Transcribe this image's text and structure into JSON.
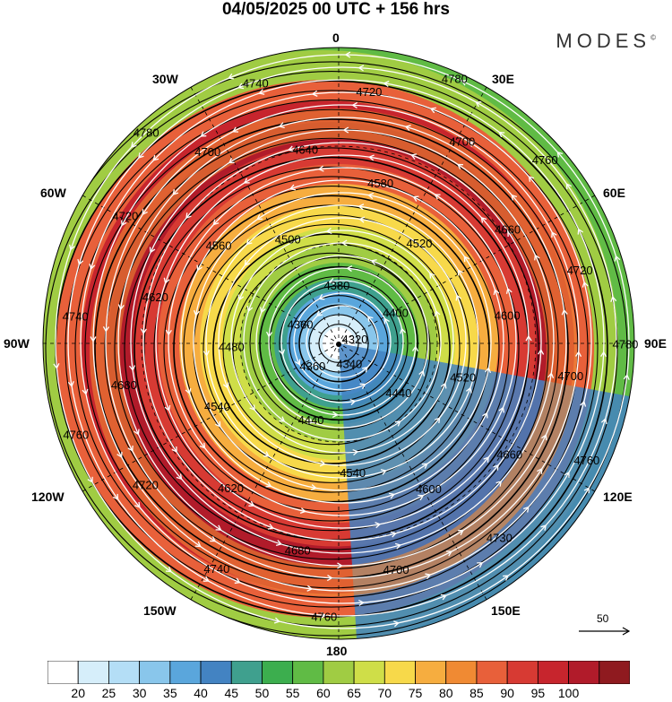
{
  "title": "04/05/2025  00 UTC  + 156 hrs",
  "brand": "MODES",
  "brand_mark": "©",
  "longitudes": {
    "top": "0",
    "bottom": "180",
    "left": "90W",
    "right": "90E",
    "upper_left": "30W",
    "upper_right": "30E",
    "mid_left": "60W",
    "mid_right": "60E",
    "lower_left": "120W",
    "lower_right": "120E",
    "bottom_left": "150W",
    "bottom_right": "150E"
  },
  "wind_reference": {
    "value": "50",
    "icon": "arrow-right-icon"
  },
  "colorbar": {
    "colors": [
      "#ffffff",
      "#d6eefa",
      "#b4def6",
      "#89c6eb",
      "#5aa6dc",
      "#4383c2",
      "#3fa08e",
      "#3cae4e",
      "#60bb45",
      "#a0cc43",
      "#cfde48",
      "#f7d94a",
      "#f6ad3f",
      "#f08a33",
      "#e8603a",
      "#d73a33",
      "#c7252d",
      "#b11b2a",
      "#8f1a1f"
    ],
    "labels": [
      "20",
      "25",
      "30",
      "35",
      "40",
      "45",
      "50",
      "55",
      "60",
      "65",
      "70",
      "75",
      "80",
      "85",
      "90",
      "95",
      "100"
    ]
  },
  "contours": {
    "unit": "gpm",
    "labels": [
      "4320",
      "4340",
      "4360",
      "4360",
      "4380",
      "4400",
      "4440",
      "4440",
      "4480",
      "4500",
      "4520",
      "4520",
      "4540",
      "4540",
      "4560",
      "4580",
      "4600",
      "4600",
      "4620",
      "4620",
      "4640",
      "4660",
      "4660",
      "4680",
      "4680",
      "4700",
      "4700",
      "4700",
      "4700",
      "4720",
      "4720",
      "4720",
      "4720",
      "4730",
      "4740",
      "4740",
      "4740",
      "4760",
      "4760",
      "4760",
      "4760",
      "4780",
      "4780",
      "4780"
    ]
  }
}
